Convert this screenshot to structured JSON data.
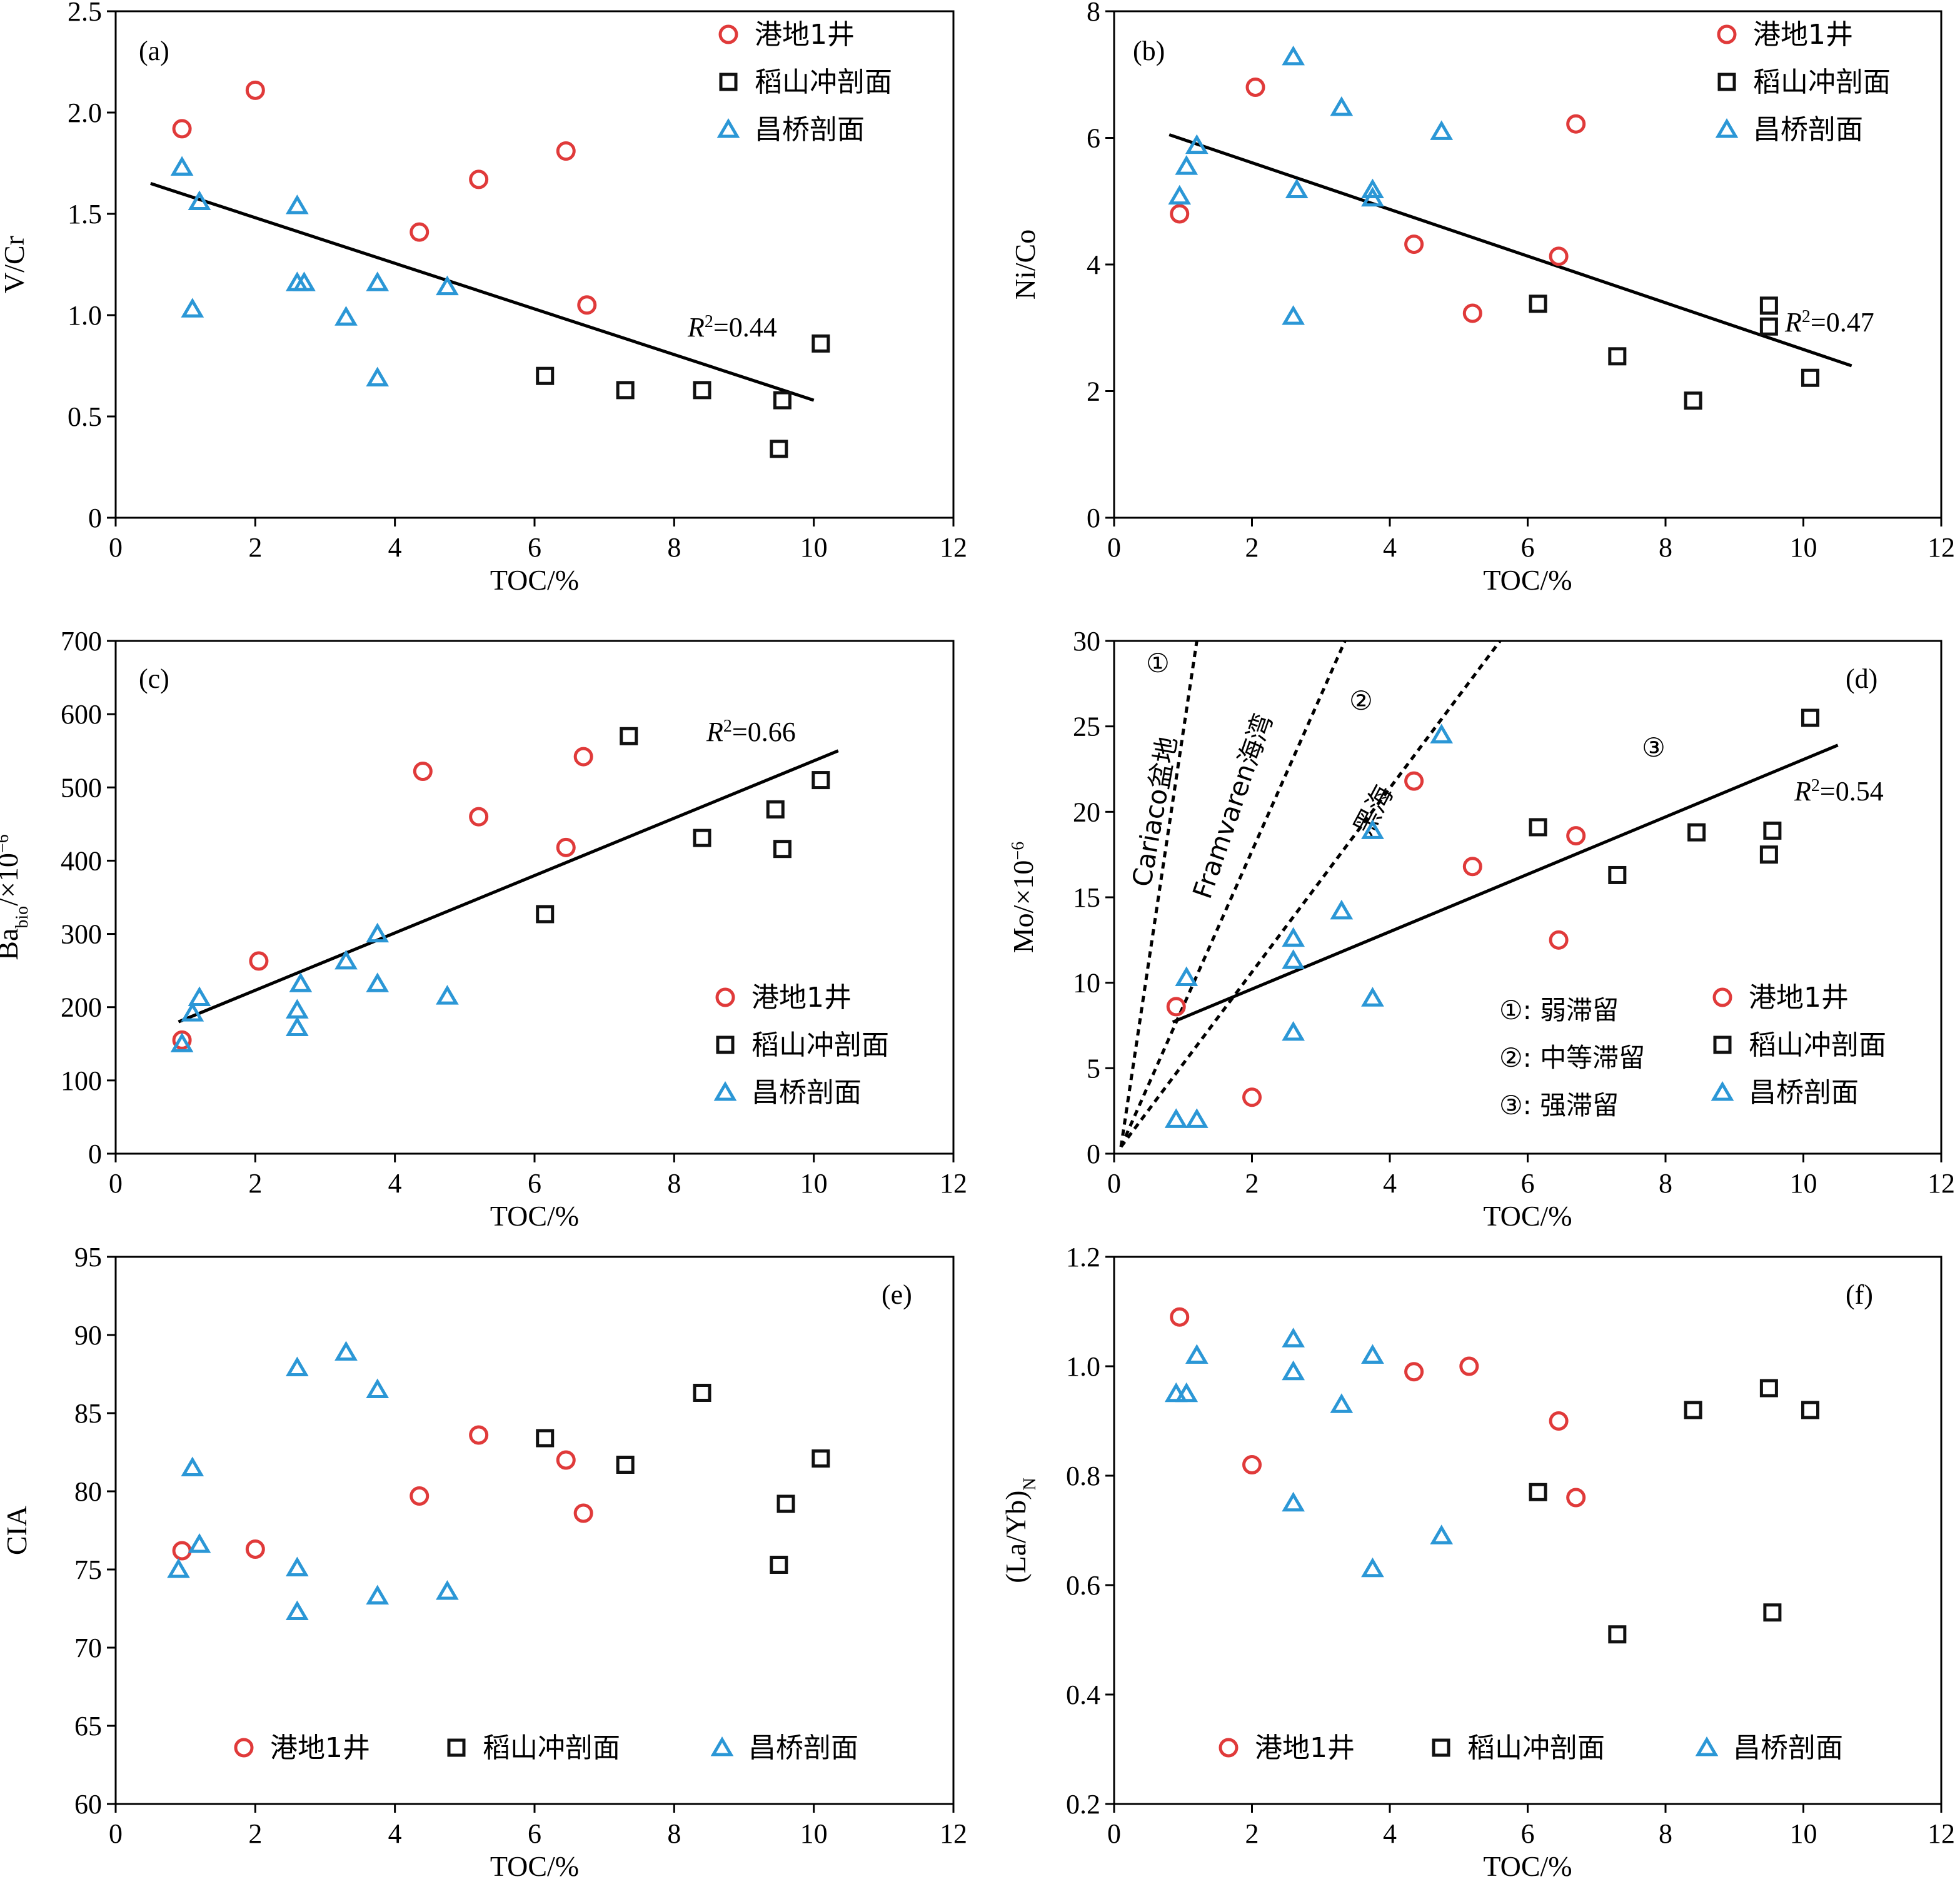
{
  "legend_labels": [
    "港地1井",
    "稻山冲剖面",
    "昌桥剖面"
  ],
  "series_colors": {
    "港地1井": "#e03a3a",
    "稻山冲剖面": "#111111",
    "昌桥剖面": "#2b97d6"
  },
  "series_markers": {
    "港地1井": "circle",
    "稻山冲剖面": "square",
    "昌桥剖面": "triangle"
  },
  "chart_data": [
    {
      "id": "a",
      "tag": "(a)",
      "type": "scatter",
      "xlabel": "TOC/%",
      "ylabel": "V/Cr",
      "xlim": [
        0,
        12
      ],
      "ylim": [
        0,
        2.5
      ],
      "xticks": [
        0,
        2,
        4,
        6,
        8,
        10,
        12
      ],
      "xtick_labels": [
        "0",
        "2",
        "4",
        "6",
        "8",
        "10",
        "12"
      ],
      "yticks": [
        0,
        0.5,
        1,
        1.5,
        2,
        2.5
      ],
      "ytick_labels": [
        "0",
        "0.5",
        "1.0",
        "1.5",
        "2.0",
        "2.5"
      ],
      "legend_position": "top-right",
      "series": [
        {
          "name": "港地1井",
          "points": [
            [
              0.95,
              1.92
            ],
            [
              2.0,
              2.11
            ],
            [
              4.35,
              1.41
            ],
            [
              5.2,
              1.67
            ],
            [
              6.45,
              1.81
            ],
            [
              6.75,
              1.05
            ]
          ]
        },
        {
          "name": "稻山冲剖面",
          "points": [
            [
              6.15,
              0.7
            ],
            [
              7.3,
              0.63
            ],
            [
              8.4,
              0.63
            ],
            [
              9.5,
              0.34
            ],
            [
              9.55,
              0.58
            ],
            [
              10.1,
              0.86
            ]
          ]
        },
        {
          "name": "昌桥剖面",
          "points": [
            [
              0.95,
              1.73
            ],
            [
              1.2,
              1.56
            ],
            [
              1.1,
              1.03
            ],
            [
              2.6,
              1.54
            ],
            [
              2.6,
              1.16
            ],
            [
              2.7,
              1.16
            ],
            [
              3.3,
              0.99
            ],
            [
              3.75,
              1.16
            ],
            [
              3.75,
              0.69
            ],
            [
              4.75,
              1.14
            ]
          ]
        }
      ],
      "fit": {
        "x": [
          0.5,
          10.0
        ],
        "y": [
          1.65,
          0.58
        ],
        "r2_prefix": "R",
        "r2_value": "=0.44"
      }
    },
    {
      "id": "b",
      "tag": "(b)",
      "type": "scatter",
      "xlabel": "TOC/%",
      "ylabel": "Ni/Co",
      "xlim": [
        0,
        12
      ],
      "ylim": [
        0,
        8
      ],
      "xticks": [
        0,
        2,
        4,
        6,
        8,
        10,
        12
      ],
      "xtick_labels": [
        "0",
        "2",
        "4",
        "6",
        "8",
        "10",
        "12"
      ],
      "yticks": [
        0,
        2,
        4,
        6,
        8
      ],
      "ytick_labels": [
        "0",
        "2",
        "4",
        "6",
        "8"
      ],
      "legend_position": "top-right",
      "series": [
        {
          "name": "港地1井",
          "points": [
            [
              0.95,
              4.8
            ],
            [
              2.05,
              6.8
            ],
            [
              4.35,
              4.32
            ],
            [
              5.2,
              3.23
            ],
            [
              6.45,
              4.13
            ],
            [
              6.7,
              6.22
            ]
          ]
        },
        {
          "name": "稻山冲剖面",
          "points": [
            [
              6.15,
              3.38
            ],
            [
              7.3,
              2.55
            ],
            [
              8.4,
              1.85
            ],
            [
              9.5,
              3.35
            ],
            [
              9.5,
              3.02
            ],
            [
              10.1,
              2.21
            ]
          ]
        },
        {
          "name": "昌桥剖面",
          "points": [
            [
              0.95,
              5.08
            ],
            [
              1.05,
              5.55
            ],
            [
              1.2,
              5.88
            ],
            [
              2.6,
              7.28
            ],
            [
              2.65,
              5.18
            ],
            [
              2.6,
              3.18
            ],
            [
              3.3,
              6.48
            ],
            [
              3.75,
              5.18
            ],
            [
              3.75,
              5.05
            ],
            [
              4.75,
              6.1
            ]
          ]
        }
      ],
      "fit": {
        "x": [
          0.8,
          10.7
        ],
        "y": [
          6.05,
          2.4
        ],
        "r2_prefix": "R",
        "r2_value": "=0.47"
      }
    },
    {
      "id": "c",
      "tag": "(c)",
      "type": "scatter",
      "xlabel": "TOC/%",
      "ylabel": "Ba",
      "ylabel_sub": "bio",
      "ylabel_unit": "/×10",
      "ylabel_exp": "−6",
      "xlim": [
        0,
        12
      ],
      "ylim": [
        0,
        700
      ],
      "xticks": [
        0,
        2,
        4,
        6,
        8,
        10,
        12
      ],
      "xtick_labels": [
        "0",
        "2",
        "4",
        "6",
        "8",
        "10",
        "12"
      ],
      "yticks": [
        0,
        100,
        200,
        300,
        400,
        500,
        600,
        700
      ],
      "ytick_labels": [
        "0",
        "100",
        "200",
        "300",
        "400",
        "500",
        "600",
        "700"
      ],
      "legend_position": "bottom-right",
      "series": [
        {
          "name": "港地1井",
          "points": [
            [
              0.95,
              155
            ],
            [
              2.05,
              263
            ],
            [
              4.4,
              522
            ],
            [
              5.2,
              460
            ],
            [
              6.45,
              418
            ],
            [
              6.7,
              542
            ]
          ]
        },
        {
          "name": "稻山冲剖面",
          "points": [
            [
              6.15,
              327
            ],
            [
              7.35,
              570
            ],
            [
              8.4,
              431
            ],
            [
              9.45,
              470
            ],
            [
              9.55,
              416
            ],
            [
              10.1,
              510
            ]
          ]
        },
        {
          "name": "昌桥剖面",
          "points": [
            [
              0.95,
              150
            ],
            [
              1.1,
              192
            ],
            [
              1.2,
              213
            ],
            [
              2.6,
              172
            ],
            [
              2.6,
              196
            ],
            [
              2.65,
              232
            ],
            [
              3.3,
              263
            ],
            [
              3.75,
              232
            ],
            [
              3.75,
              300
            ],
            [
              4.75,
              215
            ]
          ]
        }
      ],
      "fit": {
        "x": [
          0.9,
          10.35
        ],
        "y": [
          180,
          550
        ],
        "r2_prefix": "R",
        "r2_value": "=0.66"
      }
    },
    {
      "id": "d",
      "tag": "(d)",
      "type": "scatter",
      "xlabel": "TOC/%",
      "ylabel": "Mo/×10",
      "ylabel_exp": "−6",
      "xlim": [
        0,
        12
      ],
      "ylim": [
        0,
        30
      ],
      "xticks": [
        0,
        2,
        4,
        6,
        8,
        10,
        12
      ],
      "xtick_labels": [
        "0",
        "2",
        "4",
        "6",
        "8",
        "10",
        "12"
      ],
      "yticks": [
        0,
        5,
        10,
        15,
        20,
        25,
        30
      ],
      "ytick_labels": [
        "0",
        "5",
        "10",
        "15",
        "20",
        "25",
        "30"
      ],
      "legend_position": "bottom-right",
      "series": [
        {
          "name": "港地1井",
          "points": [
            [
              0.9,
              8.6
            ],
            [
              2.0,
              3.3
            ],
            [
              4.35,
              21.8
            ],
            [
              5.2,
              16.8
            ],
            [
              6.45,
              12.5
            ],
            [
              6.7,
              18.6
            ]
          ]
        },
        {
          "name": "稻山冲剖面",
          "points": [
            [
              6.15,
              19.1
            ],
            [
              7.3,
              16.3
            ],
            [
              8.45,
              18.8
            ],
            [
              9.5,
              17.5
            ],
            [
              9.55,
              18.9
            ],
            [
              10.1,
              25.5
            ]
          ]
        },
        {
          "name": "昌桥剖面",
          "points": [
            [
              0.9,
              2.0
            ],
            [
              1.05,
              10.3
            ],
            [
              1.2,
              2.0
            ],
            [
              2.6,
              12.6
            ],
            [
              2.6,
              11.3
            ],
            [
              2.6,
              7.1
            ],
            [
              3.3,
              14.2
            ],
            [
              3.75,
              18.9
            ],
            [
              3.75,
              9.1
            ],
            [
              4.75,
              24.5
            ]
          ]
        }
      ],
      "fit": {
        "x": [
          0.85,
          10.5
        ],
        "y": [
          7.7,
          23.9
        ],
        "r2_prefix": "R",
        "r2_value": "=0.54"
      },
      "reference_lines": [
        {
          "label": "Cariaco盆地",
          "x": [
            0.1,
            1.2
          ],
          "y": [
            0.4,
            30
          ]
        },
        {
          "label": "Framvaren海湾",
          "x": [
            0.1,
            3.35
          ],
          "y": [
            0.4,
            30
          ]
        },
        {
          "label": "黑海",
          "x": [
            0.1,
            5.6
          ],
          "y": [
            0.4,
            30
          ]
        }
      ],
      "zone_marks": [
        "①",
        "②",
        "③"
      ],
      "zone_legend": [
        "①: 弱滞留",
        "②: 中等滞留",
        "③: 强滞留"
      ]
    },
    {
      "id": "e",
      "tag": "(e)",
      "type": "scatter",
      "xlabel": "TOC/%",
      "ylabel": "CIA",
      "xlim": [
        0,
        12
      ],
      "ylim": [
        60,
        95
      ],
      "xticks": [
        0,
        2,
        4,
        6,
        8,
        10,
        12
      ],
      "xtick_labels": [
        "0",
        "2",
        "4",
        "6",
        "8",
        "10",
        "12"
      ],
      "yticks": [
        60,
        65,
        70,
        75,
        80,
        85,
        90,
        95
      ],
      "ytick_labels": [
        "60",
        "65",
        "70",
        "75",
        "80",
        "85",
        "90",
        "95"
      ],
      "legend_position": "bottom",
      "series": [
        {
          "name": "港地1井",
          "points": [
            [
              0.95,
              76.2
            ],
            [
              2.0,
              76.3
            ],
            [
              4.35,
              79.7
            ],
            [
              5.2,
              83.6
            ],
            [
              6.45,
              82.0
            ],
            [
              6.7,
              78.6
            ]
          ]
        },
        {
          "name": "稻山冲剖面",
          "points": [
            [
              6.15,
              83.4
            ],
            [
              7.3,
              81.7
            ],
            [
              8.4,
              86.3
            ],
            [
              9.5,
              75.3
            ],
            [
              9.6,
              79.2
            ],
            [
              10.1,
              82.1
            ]
          ]
        },
        {
          "name": "昌桥剖面",
          "points": [
            [
              0.9,
              75.0
            ],
            [
              1.1,
              81.5
            ],
            [
              1.2,
              76.6
            ],
            [
              2.6,
              87.9
            ],
            [
              2.6,
              75.1
            ],
            [
              2.6,
              72.3
            ],
            [
              3.3,
              88.9
            ],
            [
              3.75,
              86.5
            ],
            [
              3.75,
              73.3
            ],
            [
              4.75,
              73.6
            ]
          ]
        }
      ]
    },
    {
      "id": "f",
      "tag": "(f)",
      "type": "scatter",
      "xlabel": "TOC/%",
      "ylabel": "(La/Yb)",
      "ylabel_sub": "N",
      "xlim": [
        0,
        12
      ],
      "ylim": [
        0.2,
        1.2
      ],
      "xticks": [
        0,
        2,
        4,
        6,
        8,
        10,
        12
      ],
      "xtick_labels": [
        "0",
        "2",
        "4",
        "6",
        "8",
        "10",
        "12"
      ],
      "yticks": [
        0.2,
        0.4,
        0.6,
        0.8,
        1.0,
        1.2
      ],
      "ytick_labels": [
        "0.2",
        "0.4",
        "0.6",
        "0.8",
        "1.0",
        "1.2"
      ],
      "legend_position": "bottom",
      "series": [
        {
          "name": "港地1井",
          "points": [
            [
              0.95,
              1.09
            ],
            [
              2.0,
              0.82
            ],
            [
              4.35,
              0.99
            ],
            [
              5.15,
              1.0
            ],
            [
              6.45,
              0.9
            ],
            [
              6.7,
              0.76
            ]
          ]
        },
        {
          "name": "稻山冲剖面",
          "points": [
            [
              6.15,
              0.77
            ],
            [
              7.3,
              0.51
            ],
            [
              8.4,
              0.92
            ],
            [
              9.5,
              0.96
            ],
            [
              9.55,
              0.55
            ],
            [
              10.1,
              0.92
            ]
          ]
        },
        {
          "name": "昌桥剖面",
          "points": [
            [
              0.9,
              0.95
            ],
            [
              1.05,
              0.95
            ],
            [
              1.2,
              1.02
            ],
            [
              2.6,
              1.05
            ],
            [
              2.6,
              0.99
            ],
            [
              2.6,
              0.75
            ],
            [
              3.3,
              0.93
            ],
            [
              3.75,
              1.02
            ],
            [
              3.75,
              0.63
            ],
            [
              4.75,
              0.69
            ]
          ]
        }
      ]
    }
  ]
}
